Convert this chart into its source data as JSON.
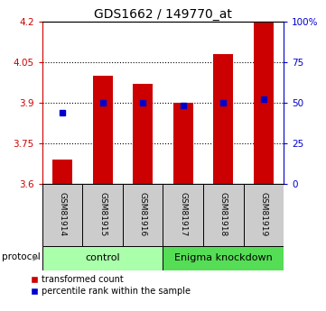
{
  "title": "GDS1662 / 149770_at",
  "samples": [
    "GSM81914",
    "GSM81915",
    "GSM81916",
    "GSM81917",
    "GSM81918",
    "GSM81919"
  ],
  "red_values": [
    3.69,
    4.0,
    3.97,
    3.9,
    4.08,
    4.22
  ],
  "blue_pct": [
    44,
    50,
    50,
    48,
    50,
    52
  ],
  "baseline": 3.6,
  "ylim_left": [
    3.6,
    4.2
  ],
  "ylim_right": [
    0,
    100
  ],
  "yticks_left": [
    3.6,
    3.75,
    3.9,
    4.05,
    4.2
  ],
  "yticks_right": [
    0,
    25,
    50,
    75,
    100
  ],
  "ytick_labels_left": [
    "3.6",
    "3.75",
    "3.9",
    "4.05",
    "4.2"
  ],
  "ytick_labels_right": [
    "0",
    "25",
    "50",
    "75",
    "100%"
  ],
  "grid_lines": [
    3.75,
    3.9,
    4.05
  ],
  "protocol_label": "protocol",
  "control_label": "control",
  "knockdown_label": "Enigma knockdown",
  "legend_red": "transformed count",
  "legend_blue": "percentile rank within the sample",
  "bar_color": "#cc0000",
  "blue_color": "#0000cc",
  "control_bg": "#aaffaa",
  "knockdown_bg": "#55dd55",
  "sample_bg": "#cccccc",
  "bar_width": 0.5,
  "title_fontsize": 10
}
